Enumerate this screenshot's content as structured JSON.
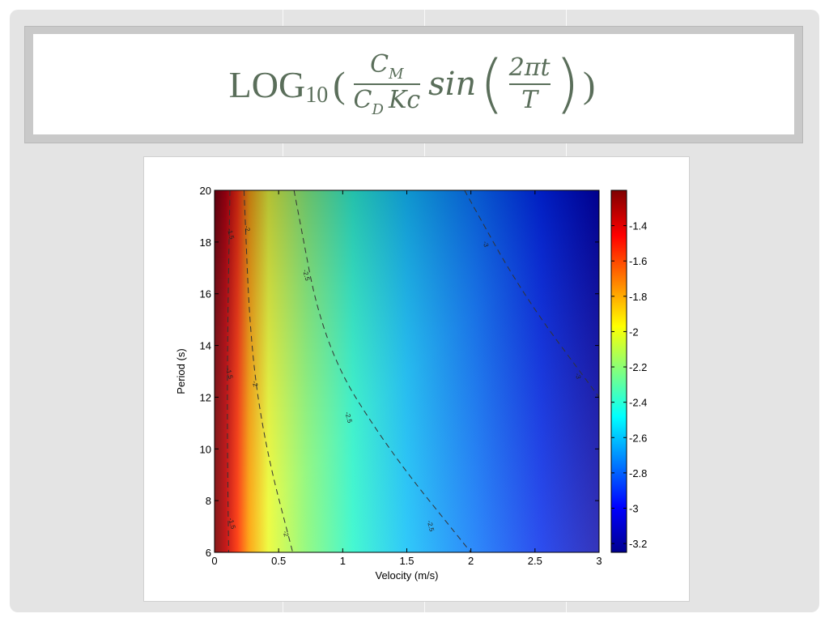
{
  "title": {
    "prefix": "LOG",
    "subscript": "10",
    "open_paren": "(",
    "close_paren": ")",
    "frac1_num": "C",
    "frac1_num_sub": "M",
    "frac1_den": "C",
    "frac1_den_sub": "D",
    "frac1_den_tail": "Kc",
    "func": "sin",
    "frac2_num": "2πt",
    "frac2_den": "T"
  },
  "colors": {
    "title_text": "#5a6e5a",
    "slide_bg": "#e4e4e4",
    "colormap": [
      "#7f0000",
      "#ff0000",
      "#ffff00",
      "#00ffff",
      "#0000ff",
      "#00008f"
    ]
  },
  "chart_data": {
    "type": "heatmap",
    "xlabel": "Velocity (m/s)",
    "ylabel": "Period (s)",
    "xlim": [
      0,
      3
    ],
    "ylim": [
      6,
      20
    ],
    "xticks": [
      "0",
      "0.5",
      "1",
      "1.5",
      "2",
      "2.5",
      "3"
    ],
    "yticks": [
      "6",
      "8",
      "10",
      "12",
      "14",
      "16",
      "18",
      "20"
    ],
    "colorbar": {
      "min": -3.25,
      "max": -1.2,
      "ticks": [
        "-1.4",
        "-1.6",
        "-1.8",
        "-2",
        "-2.2",
        "-2.4",
        "-2.6",
        "-2.8",
        "-3",
        "-3.2"
      ]
    },
    "contours": [
      {
        "level": "-1.5",
        "points": [
          [
            0.12,
            20
          ],
          [
            0.1,
            14
          ],
          [
            0.1,
            10
          ],
          [
            0.11,
            6
          ]
        ]
      },
      {
        "level": "-2",
        "points": [
          [
            0.23,
            20
          ],
          [
            0.28,
            14
          ],
          [
            0.4,
            10
          ],
          [
            0.61,
            6
          ]
        ]
      },
      {
        "level": "-2.5",
        "points": [
          [
            0.62,
            20
          ],
          [
            0.85,
            14
          ],
          [
            1.35,
            10
          ],
          [
            2.0,
            6
          ]
        ]
      },
      {
        "level": "-3",
        "points": [
          [
            1.95,
            20
          ],
          [
            2.4,
            16
          ],
          [
            3.0,
            12
          ]
        ]
      }
    ],
    "contour_labels": [
      {
        "text": "-1.5",
        "x": 0.11,
        "y": 18.3
      },
      {
        "text": "-1.5",
        "x": 0.1,
        "y": 12.9
      },
      {
        "text": "-1.5",
        "x": 0.12,
        "y": 7.1
      },
      {
        "text": "-2",
        "x": 0.24,
        "y": 18.5
      },
      {
        "text": "-2",
        "x": 0.3,
        "y": 12.5
      },
      {
        "text": "-2",
        "x": 0.54,
        "y": 6.7
      },
      {
        "text": "-2.5",
        "x": 0.7,
        "y": 16.7
      },
      {
        "text": "-2.5",
        "x": 1.03,
        "y": 11.2
      },
      {
        "text": "-2.5",
        "x": 1.67,
        "y": 7.0
      },
      {
        "text": "-3",
        "x": 2.1,
        "y": 17.9
      },
      {
        "text": "-3",
        "x": 2.82,
        "y": 12.8
      }
    ]
  }
}
